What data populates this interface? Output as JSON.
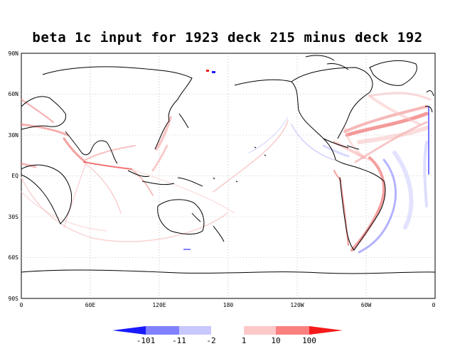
{
  "title": "beta 1c input for 1923 deck 215 minus deck 192",
  "lat_ticks": [
    "90N",
    "60N",
    "30N",
    "EQ",
    "30S",
    "60S",
    "90S"
  ],
  "lon_ticks": [
    "0",
    "60E",
    "120E",
    "180",
    "120W",
    "60W",
    "0"
  ],
  "colorbar": {
    "negative_labels": [
      "-101",
      "-11",
      "-2"
    ],
    "positive_labels": [
      "1",
      "10",
      "100"
    ],
    "negative_colors": [
      "#1a1aff",
      "#8080ff",
      "#c8c8ff"
    ],
    "positive_colors": [
      "#fdc8c8",
      "#fa8080",
      "#f51a1a"
    ]
  },
  "colors": {
    "land_outline": "#000000",
    "grid": "#999999",
    "positive": "#f08080",
    "negative": "#8080f0"
  }
}
